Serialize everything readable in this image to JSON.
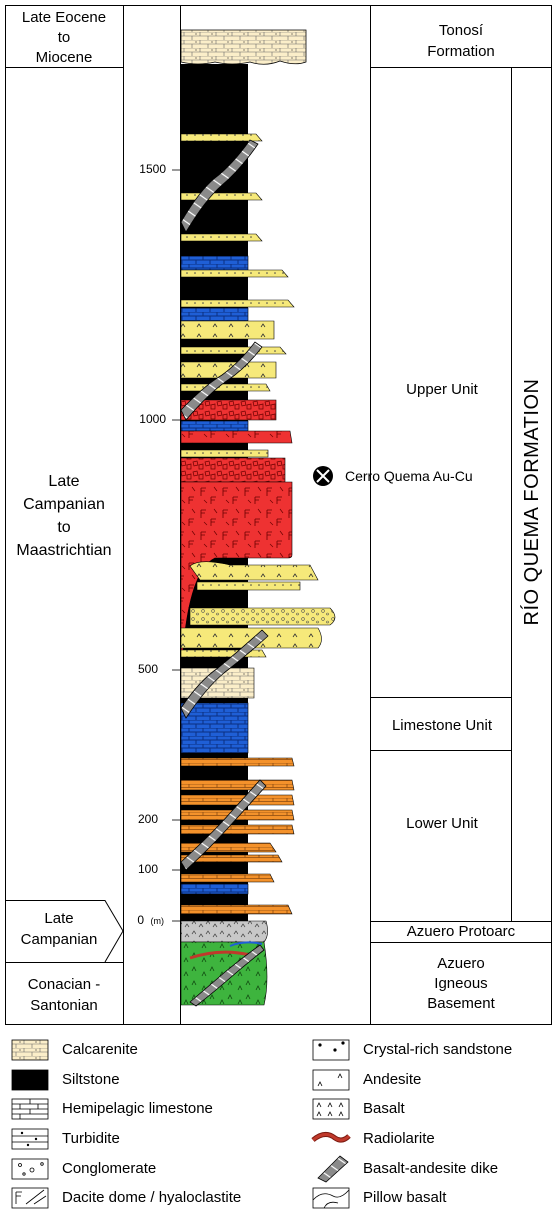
{
  "ages": {
    "eocene_miocene": [
      "Late Eocene",
      "to",
      "Miocene"
    ],
    "campanian_maastrichtian": [
      "Late",
      "Campanian",
      "to",
      "Maastrichtian"
    ],
    "late_campanian": [
      "Late",
      "Campanian"
    ],
    "conacian_santonian": [
      "Conacian -",
      "Santonian"
    ]
  },
  "units": {
    "tonosi": [
      "Tonosí",
      "Formation"
    ],
    "upper": "Upper Unit",
    "limestone": "Limestone Unit",
    "lower": "Lower Unit",
    "protoarc": "Azuero Protoarc",
    "basement": [
      "Azuero",
      "Igneous",
      "Basement"
    ],
    "formation": "RÍO QUEMA FORMATION"
  },
  "ticks": [
    "1500",
    "1000",
    "500",
    "200",
    "100",
    "0"
  ],
  "tick_unit": "(m)",
  "mine_label": "Cerro Quema Au-Cu",
  "legend": {
    "left": [
      "Calcarenite",
      "Siltstone",
      "Hemipelagic limestone",
      "Turbidite",
      "Conglomerate",
      "Dacite dome / hyaloclastite"
    ],
    "right": [
      "Crystal-rich sandstone",
      "Andesite",
      "Basalt",
      "Radiolarite",
      "Basalt-andesite dike",
      "Pillow basalt"
    ]
  },
  "colors": {
    "siltstone": "#000000",
    "limestone": "#1f5fd6",
    "sandstone": "#f6e97a",
    "dacite": "#ee3232",
    "turbidite": "#f4922b",
    "basement": "#3eb43e",
    "protoarc": "#c8c8c8",
    "calcarenite": "#fbeec9",
    "dike": "#8a8a8a",
    "radiolarite": "#c0392b"
  }
}
